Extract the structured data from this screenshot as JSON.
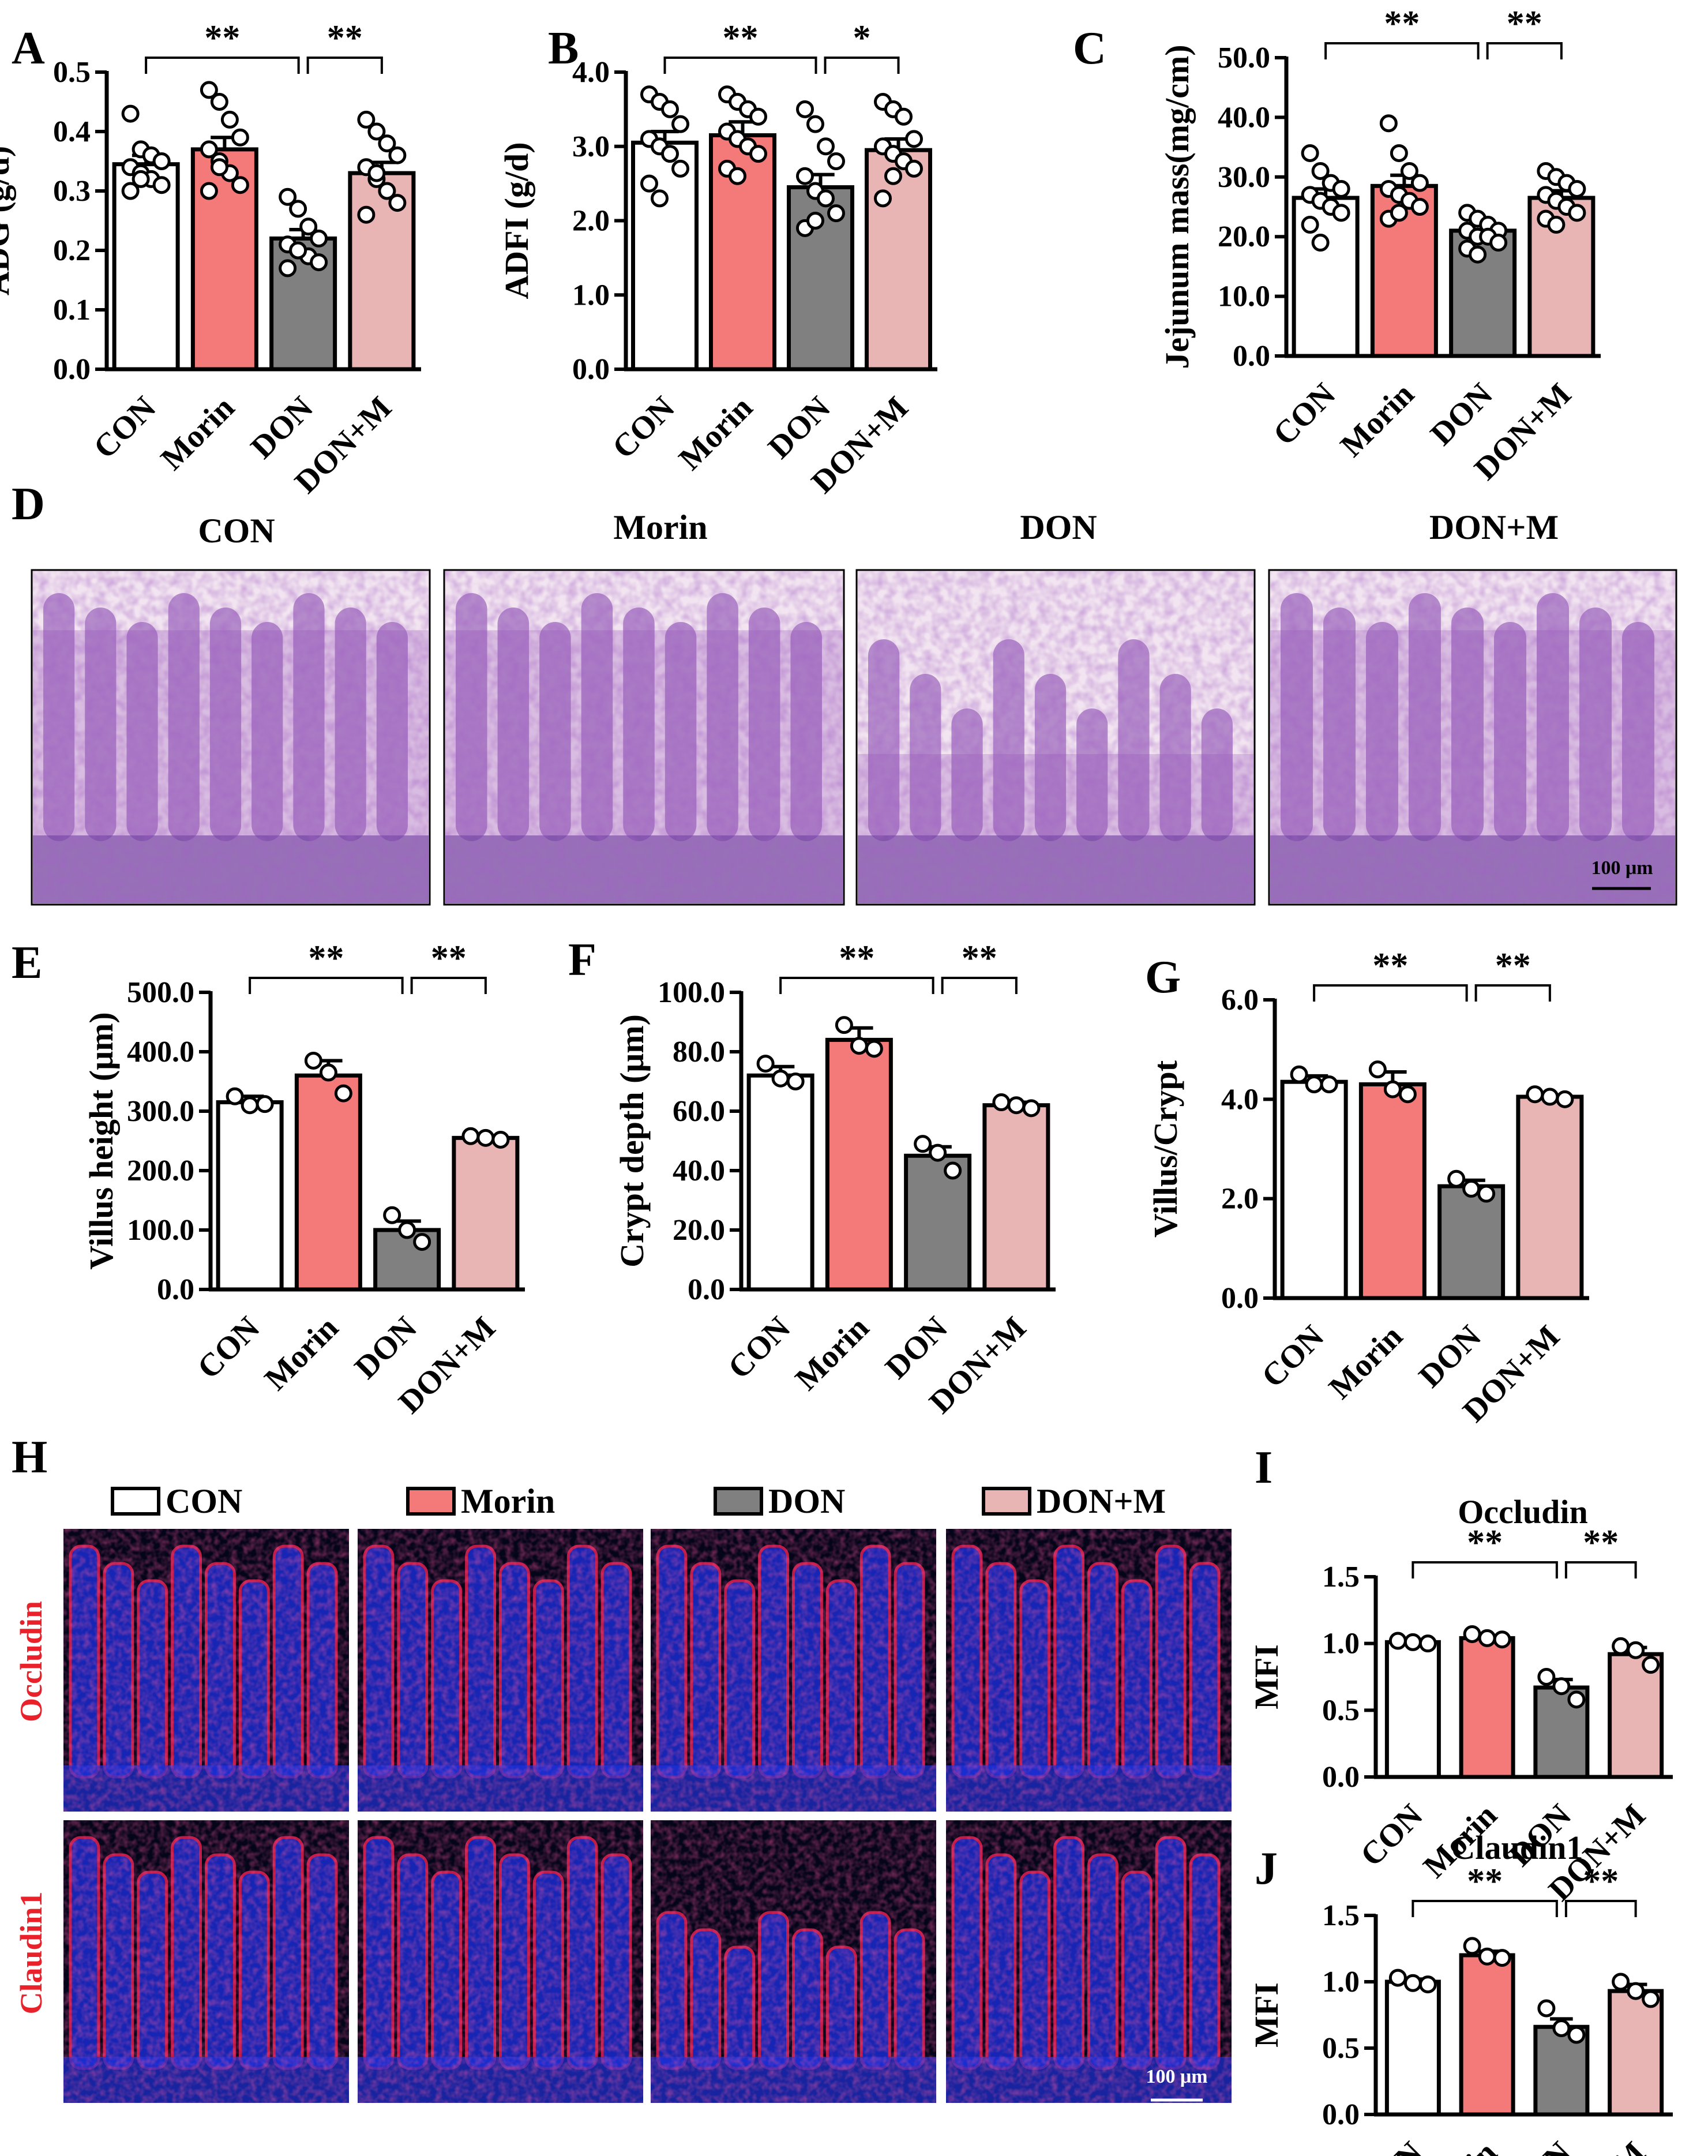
{
  "panels": {
    "D": {
      "letter": "D",
      "titles": [
        "CON",
        "Morin",
        "DON",
        "DON+M"
      ],
      "scale_bar": "100 μm"
    },
    "H": {
      "letter": "H",
      "legend": [
        {
          "label": "CON",
          "color": "#ffffff"
        },
        {
          "label": "Morin",
          "color": "#f47a7a"
        },
        {
          "label": "DON",
          "color": "#808080"
        },
        {
          "label": "DON+M",
          "color": "#e8b4b4"
        }
      ],
      "rows": [
        "Occludin",
        "Claudin1"
      ],
      "scale_bar": "100 μm"
    }
  },
  "chart_data": [
    {
      "id": "A",
      "letter": "A",
      "type": "bar",
      "categories": [
        "CON",
        "Morin",
        "DON",
        "DON+M"
      ],
      "values": [
        0.345,
        0.37,
        0.22,
        0.33
      ],
      "errors": [
        0.015,
        0.02,
        0.015,
        0.018
      ],
      "points": [
        [
          0.43,
          0.37,
          0.36,
          0.35,
          0.34,
          0.33,
          0.32,
          0.31,
          0.3,
          0.32
        ],
        [
          0.47,
          0.45,
          0.42,
          0.39,
          0.37,
          0.35,
          0.33,
          0.31,
          0.3,
          0.34
        ],
        [
          0.29,
          0.27,
          0.24,
          0.22,
          0.21,
          0.2,
          0.19,
          0.18,
          0.17,
          0.2
        ],
        [
          0.42,
          0.4,
          0.38,
          0.36,
          0.34,
          0.32,
          0.3,
          0.28,
          0.26,
          0.33
        ]
      ],
      "ylabel": "ADG (g/d)",
      "yticks": [
        "0.0",
        "0.1",
        "0.2",
        "0.3",
        "0.4",
        "0.5"
      ],
      "ylim": [
        0,
        0.5
      ],
      "sig": [
        {
          "from": 0,
          "to": 2,
          "label": "**"
        },
        {
          "from": 2,
          "to": 3,
          "label": "**"
        }
      ]
    },
    {
      "id": "B",
      "letter": "B",
      "type": "bar",
      "categories": [
        "CON",
        "Morin",
        "DON",
        "DON+M"
      ],
      "values": [
        3.05,
        3.15,
        2.45,
        2.95
      ],
      "errors": [
        0.15,
        0.18,
        0.17,
        0.15
      ],
      "points": [
        [
          3.7,
          3.6,
          3.5,
          3.3,
          3.1,
          3.0,
          2.9,
          2.7,
          2.5,
          2.3
        ],
        [
          3.7,
          3.6,
          3.5,
          3.4,
          3.2,
          3.1,
          3.0,
          2.9,
          2.7,
          2.6
        ],
        [
          3.5,
          3.3,
          3.0,
          2.8,
          2.6,
          2.4,
          2.3,
          2.1,
          1.9,
          2.0
        ],
        [
          3.6,
          3.5,
          3.4,
          3.1,
          3.0,
          2.9,
          2.8,
          2.7,
          2.3,
          2.6
        ]
      ],
      "ylabel": "ADFI (g/d)",
      "yticks": [
        "0.0",
        "1.0",
        "2.0",
        "3.0",
        "4.0"
      ],
      "ylim": [
        0,
        4
      ],
      "sig": [
        {
          "from": 0,
          "to": 2,
          "label": "**"
        },
        {
          "from": 2,
          "to": 3,
          "label": "*"
        }
      ]
    },
    {
      "id": "C",
      "letter": "C",
      "type": "bar",
      "categories": [
        "CON",
        "Morin",
        "DON",
        "DON+M"
      ],
      "values": [
        26.5,
        28.5,
        21.0,
        26.5
      ],
      "errors": [
        1.5,
        1.8,
        0.9,
        1.2
      ],
      "points": [
        [
          34,
          31,
          29,
          28,
          27,
          26,
          25,
          24,
          22,
          19
        ],
        [
          39,
          34,
          31,
          29,
          28,
          27,
          26,
          25,
          23,
          24
        ],
        [
          24,
          23,
          22,
          21,
          21,
          20,
          20,
          19,
          18,
          17
        ],
        [
          31,
          30,
          29,
          28,
          27,
          26,
          25,
          24,
          23,
          22
        ]
      ],
      "ylabel": "Jejunum mass(mg/cm)",
      "yticks": [
        "0.0",
        "10.0",
        "20.0",
        "30.0",
        "40.0",
        "50.0"
      ],
      "ylim": [
        0,
        50
      ],
      "sig": [
        {
          "from": 0,
          "to": 2,
          "label": "**"
        },
        {
          "from": 2,
          "to": 3,
          "label": "**"
        }
      ]
    },
    {
      "id": "E",
      "letter": "E",
      "type": "bar",
      "categories": [
        "CON",
        "Morin",
        "DON",
        "DON+M"
      ],
      "values": [
        315,
        360,
        100,
        255
      ],
      "errors": [
        10,
        25,
        15,
        3
      ],
      "points": [
        [
          325,
          310,
          312
        ],
        [
          385,
          365,
          330
        ],
        [
          125,
          100,
          80
        ],
        [
          258,
          255,
          252
        ]
      ],
      "ylabel": "Villus height (μm)",
      "yticks": [
        "0.0",
        "100.0",
        "200.0",
        "300.0",
        "400.0",
        "500.0"
      ],
      "ylim": [
        0,
        500
      ],
      "sig": [
        {
          "from": 0,
          "to": 2,
          "label": "**"
        },
        {
          "from": 2,
          "to": 3,
          "label": "**"
        }
      ]
    },
    {
      "id": "F",
      "letter": "F",
      "type": "bar",
      "categories": [
        "CON",
        "Morin",
        "DON",
        "DON+M"
      ],
      "values": [
        72,
        84,
        45,
        62
      ],
      "errors": [
        3,
        4,
        3,
        1
      ],
      "points": [
        [
          76,
          71,
          70
        ],
        [
          89,
          82,
          81
        ],
        [
          49,
          46,
          40
        ],
        [
          63,
          62,
          61
        ]
      ],
      "ylabel": "Crypt depth (μm)",
      "yticks": [
        "0.0",
        "20.0",
        "40.0",
        "60.0",
        "80.0",
        "100.0"
      ],
      "ylim": [
        0,
        100
      ],
      "sig": [
        {
          "from": 0,
          "to": 2,
          "label": "**"
        },
        {
          "from": 2,
          "to": 3,
          "label": "**"
        }
      ]
    },
    {
      "id": "G",
      "letter": "G",
      "type": "bar",
      "categories": [
        "CON",
        "Morin",
        "DON",
        "DON+M"
      ],
      "values": [
        4.35,
        4.3,
        2.25,
        4.05
      ],
      "errors": [
        0.12,
        0.25,
        0.12,
        0.03
      ],
      "points": [
        [
          4.5,
          4.3,
          4.3
        ],
        [
          4.6,
          4.2,
          4.1
        ],
        [
          2.4,
          2.2,
          2.1
        ],
        [
          4.1,
          4.05,
          4.0
        ]
      ],
      "ylabel": "Villus/Crypt",
      "yticks": [
        "0.0",
        "2.0",
        "4.0",
        "6.0"
      ],
      "ylim": [
        0,
        6
      ],
      "sig": [
        {
          "from": 0,
          "to": 2,
          "label": "**"
        },
        {
          "from": 2,
          "to": 3,
          "label": "**"
        }
      ]
    },
    {
      "id": "I",
      "letter": "I",
      "type": "bar",
      "title": "Occludin",
      "categories": [
        "CON",
        "Morin",
        "DON",
        "DON+M"
      ],
      "values": [
        1.01,
        1.04,
        0.67,
        0.92
      ],
      "errors": [
        0.01,
        0.02,
        0.06,
        0.05
      ],
      "points": [
        [
          1.02,
          1.01,
          1.0
        ],
        [
          1.07,
          1.04,
          1.03
        ],
        [
          0.75,
          0.68,
          0.58
        ],
        [
          0.98,
          0.95,
          0.84
        ]
      ],
      "ylabel": "MFI",
      "yticks": [
        "0.0",
        "0.5",
        "1.0",
        "1.5"
      ],
      "ylim": [
        0,
        1.5
      ],
      "sig": [
        {
          "from": 0,
          "to": 2,
          "label": "**"
        },
        {
          "from": 2,
          "to": 3,
          "label": "**"
        }
      ]
    },
    {
      "id": "J",
      "letter": "J",
      "type": "bar",
      "title": "Claudin1",
      "categories": [
        "CON",
        "Morin",
        "DON",
        "DON+M"
      ],
      "values": [
        1.0,
        1.2,
        0.66,
        0.93
      ],
      "errors": [
        0.02,
        0.03,
        0.06,
        0.05
      ],
      "points": [
        [
          1.03,
          0.99,
          0.98
        ],
        [
          1.27,
          1.19,
          1.18
        ],
        [
          0.8,
          0.65,
          0.6
        ],
        [
          1.0,
          0.93,
          0.87
        ]
      ],
      "ylabel": "MFI",
      "yticks": [
        "0.0",
        "0.5",
        "1.0",
        "1.5"
      ],
      "ylim": [
        0,
        1.5
      ],
      "sig": [
        {
          "from": 0,
          "to": 2,
          "label": "**"
        },
        {
          "from": 2,
          "to": 3,
          "label": "**"
        }
      ]
    }
  ],
  "colors": {
    "CON": "#ffffff",
    "Morin": "#f47a7a",
    "DON": "#808080",
    "DON+M": "#e8b4b4"
  }
}
